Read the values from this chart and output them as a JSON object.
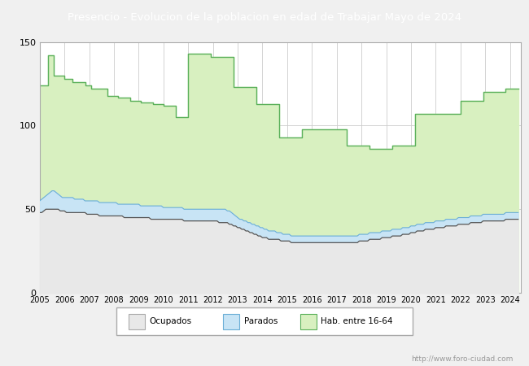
{
  "title": "Presencio - Evolucion de la poblacion en edad de Trabajar Mayo de 2024",
  "title_bg": "#4d7ebf",
  "title_color": "white",
  "ylim": [
    0,
    150
  ],
  "yticks": [
    0,
    50,
    100,
    150
  ],
  "watermark": "http://www.foro-ciudad.com",
  "background_color": "#f0f0f0",
  "plot_bg": "#ffffff",
  "grid_color": "#cccccc",
  "hab_fill_color": "#d8f0c0",
  "hab_line_color": "#5ab05a",
  "parados_fill_color": "#c8e4f5",
  "parados_line_color": "#6aaed6",
  "ocupados_line_color": "#555555",
  "ocupados_fill_color": "#e8e8e8",
  "hab_data": [
    124,
    124,
    124,
    124,
    142,
    142,
    142,
    130,
    130,
    130,
    130,
    130,
    128,
    128,
    128,
    128,
    126,
    126,
    126,
    126,
    126,
    126,
    124,
    124,
    124,
    122,
    122,
    122,
    122,
    122,
    122,
    122,
    122,
    118,
    118,
    118,
    118,
    118,
    117,
    117,
    117,
    117,
    117,
    117,
    115,
    115,
    115,
    115,
    115,
    114,
    114,
    114,
    114,
    114,
    114,
    113,
    113,
    113,
    113,
    113,
    112,
    112,
    112,
    112,
    112,
    112,
    105,
    105,
    105,
    105,
    105,
    105,
    143,
    143,
    143,
    143,
    143,
    143,
    143,
    143,
    143,
    143,
    143,
    141,
    141,
    141,
    141,
    141,
    141,
    141,
    141,
    141,
    141,
    141,
    123,
    123,
    123,
    123,
    123,
    123,
    123,
    123,
    123,
    123,
    123,
    113,
    113,
    113,
    113,
    113,
    113,
    113,
    113,
    113,
    113,
    113,
    93,
    93,
    93,
    93,
    93,
    93,
    93,
    93,
    93,
    93,
    93,
    98,
    98,
    98,
    98,
    98,
    98,
    98,
    98,
    98,
    98,
    98,
    98,
    98,
    98,
    98,
    98,
    98,
    98,
    98,
    98,
    98,
    98,
    88,
    88,
    88,
    88,
    88,
    88,
    88,
    88,
    88,
    88,
    88,
    86,
    86,
    86,
    86,
    86,
    86,
    86,
    86,
    86,
    86,
    86,
    88,
    88,
    88,
    88,
    88,
    88,
    88,
    88,
    88,
    88,
    88,
    107,
    107,
    107,
    107,
    107,
    107,
    107,
    107,
    107,
    107,
    107,
    107,
    107,
    107,
    107,
    107,
    107,
    107,
    107,
    107,
    107,
    107,
    115,
    115,
    115,
    115,
    115,
    115,
    115,
    115,
    115,
    115,
    115,
    120,
    120,
    120,
    120,
    120,
    120,
    120,
    120,
    120,
    120,
    120,
    122,
    122,
    122,
    122,
    122
  ],
  "ocupados_data": [
    48,
    48,
    49,
    50,
    50,
    50,
    50,
    50,
    50,
    50,
    49,
    49,
    49,
    48,
    48,
    48,
    48,
    48,
    48,
    48,
    48,
    48,
    48,
    47,
    47,
    47,
    47,
    47,
    47,
    46,
    46,
    46,
    46,
    46,
    46,
    46,
    46,
    46,
    46,
    46,
    46,
    45,
    45,
    45,
    45,
    45,
    45,
    45,
    45,
    45,
    45,
    45,
    45,
    45,
    44,
    44,
    44,
    44,
    44,
    44,
    44,
    44,
    44,
    44,
    44,
    44,
    44,
    44,
    44,
    44,
    43,
    43,
    43,
    43,
    43,
    43,
    43,
    43,
    43,
    43,
    43,
    43,
    43,
    43,
    43,
    43,
    43,
    42,
    42,
    42,
    42,
    42,
    41,
    41,
    40,
    40,
    39,
    39,
    38,
    38,
    37,
    37,
    36,
    36,
    35,
    35,
    34,
    34,
    33,
    33,
    33,
    32,
    32,
    32,
    32,
    32,
    32,
    31,
    31,
    31,
    31,
    31,
    30,
    30,
    30,
    30,
    30,
    30,
    30,
    30,
    30,
    30,
    30,
    30,
    30,
    30,
    30,
    30,
    30,
    30,
    30,
    30,
    30,
    30,
    30,
    30,
    30,
    30,
    30,
    30,
    30,
    30,
    30,
    30,
    30,
    31,
    31,
    31,
    31,
    31,
    32,
    32,
    32,
    32,
    32,
    32,
    33,
    33,
    33,
    33,
    33,
    34,
    34,
    34,
    34,
    34,
    35,
    35,
    35,
    35,
    36,
    36,
    36,
    37,
    37,
    37,
    37,
    38,
    38,
    38,
    38,
    38,
    39,
    39,
    39,
    39,
    39,
    40,
    40,
    40,
    40,
    40,
    40,
    41,
    41,
    41,
    41,
    41,
    41,
    42,
    42,
    42,
    42,
    42,
    42,
    43,
    43,
    43,
    43,
    43,
    43,
    43,
    43,
    43,
    43,
    43,
    44,
    44,
    44,
    44,
    44
  ],
  "parados_data": [
    55,
    56,
    57,
    58,
    59,
    60,
    61,
    61,
    60,
    59,
    58,
    57,
    57,
    57,
    57,
    57,
    57,
    56,
    56,
    56,
    56,
    56,
    55,
    55,
    55,
    55,
    55,
    55,
    55,
    54,
    54,
    54,
    54,
    54,
    54,
    54,
    54,
    54,
    53,
    53,
    53,
    53,
    53,
    53,
    53,
    53,
    53,
    53,
    53,
    52,
    52,
    52,
    52,
    52,
    52,
    52,
    52,
    52,
    52,
    52,
    51,
    51,
    51,
    51,
    51,
    51,
    51,
    51,
    51,
    51,
    50,
    50,
    50,
    50,
    50,
    50,
    50,
    50,
    50,
    50,
    50,
    50,
    50,
    50,
    50,
    50,
    50,
    50,
    50,
    50,
    50,
    49,
    49,
    48,
    47,
    46,
    45,
    44,
    44,
    43,
    43,
    42,
    42,
    41,
    41,
    40,
    40,
    39,
    39,
    38,
    38,
    37,
    37,
    37,
    37,
    36,
    36,
    36,
    35,
    35,
    35,
    35,
    34,
    34,
    34,
    34,
    34,
    34,
    34,
    34,
    34,
    34,
    34,
    34,
    34,
    34,
    34,
    34,
    34,
    34,
    34,
    34,
    34,
    34,
    34,
    34,
    34,
    34,
    34,
    34,
    34,
    34,
    34,
    34,
    34,
    35,
    35,
    35,
    35,
    35,
    36,
    36,
    36,
    36,
    36,
    36,
    37,
    37,
    37,
    37,
    37,
    38,
    38,
    38,
    38,
    38,
    39,
    39,
    39,
    39,
    40,
    40,
    40,
    41,
    41,
    41,
    41,
    42,
    42,
    42,
    42,
    42,
    43,
    43,
    43,
    43,
    43,
    44,
    44,
    44,
    44,
    44,
    44,
    45,
    45,
    45,
    45,
    45,
    45,
    46,
    46,
    46,
    46,
    46,
    46,
    47,
    47,
    47,
    47,
    47,
    47,
    47,
    47,
    47,
    47,
    47,
    48,
    48,
    48,
    48,
    48
  ]
}
